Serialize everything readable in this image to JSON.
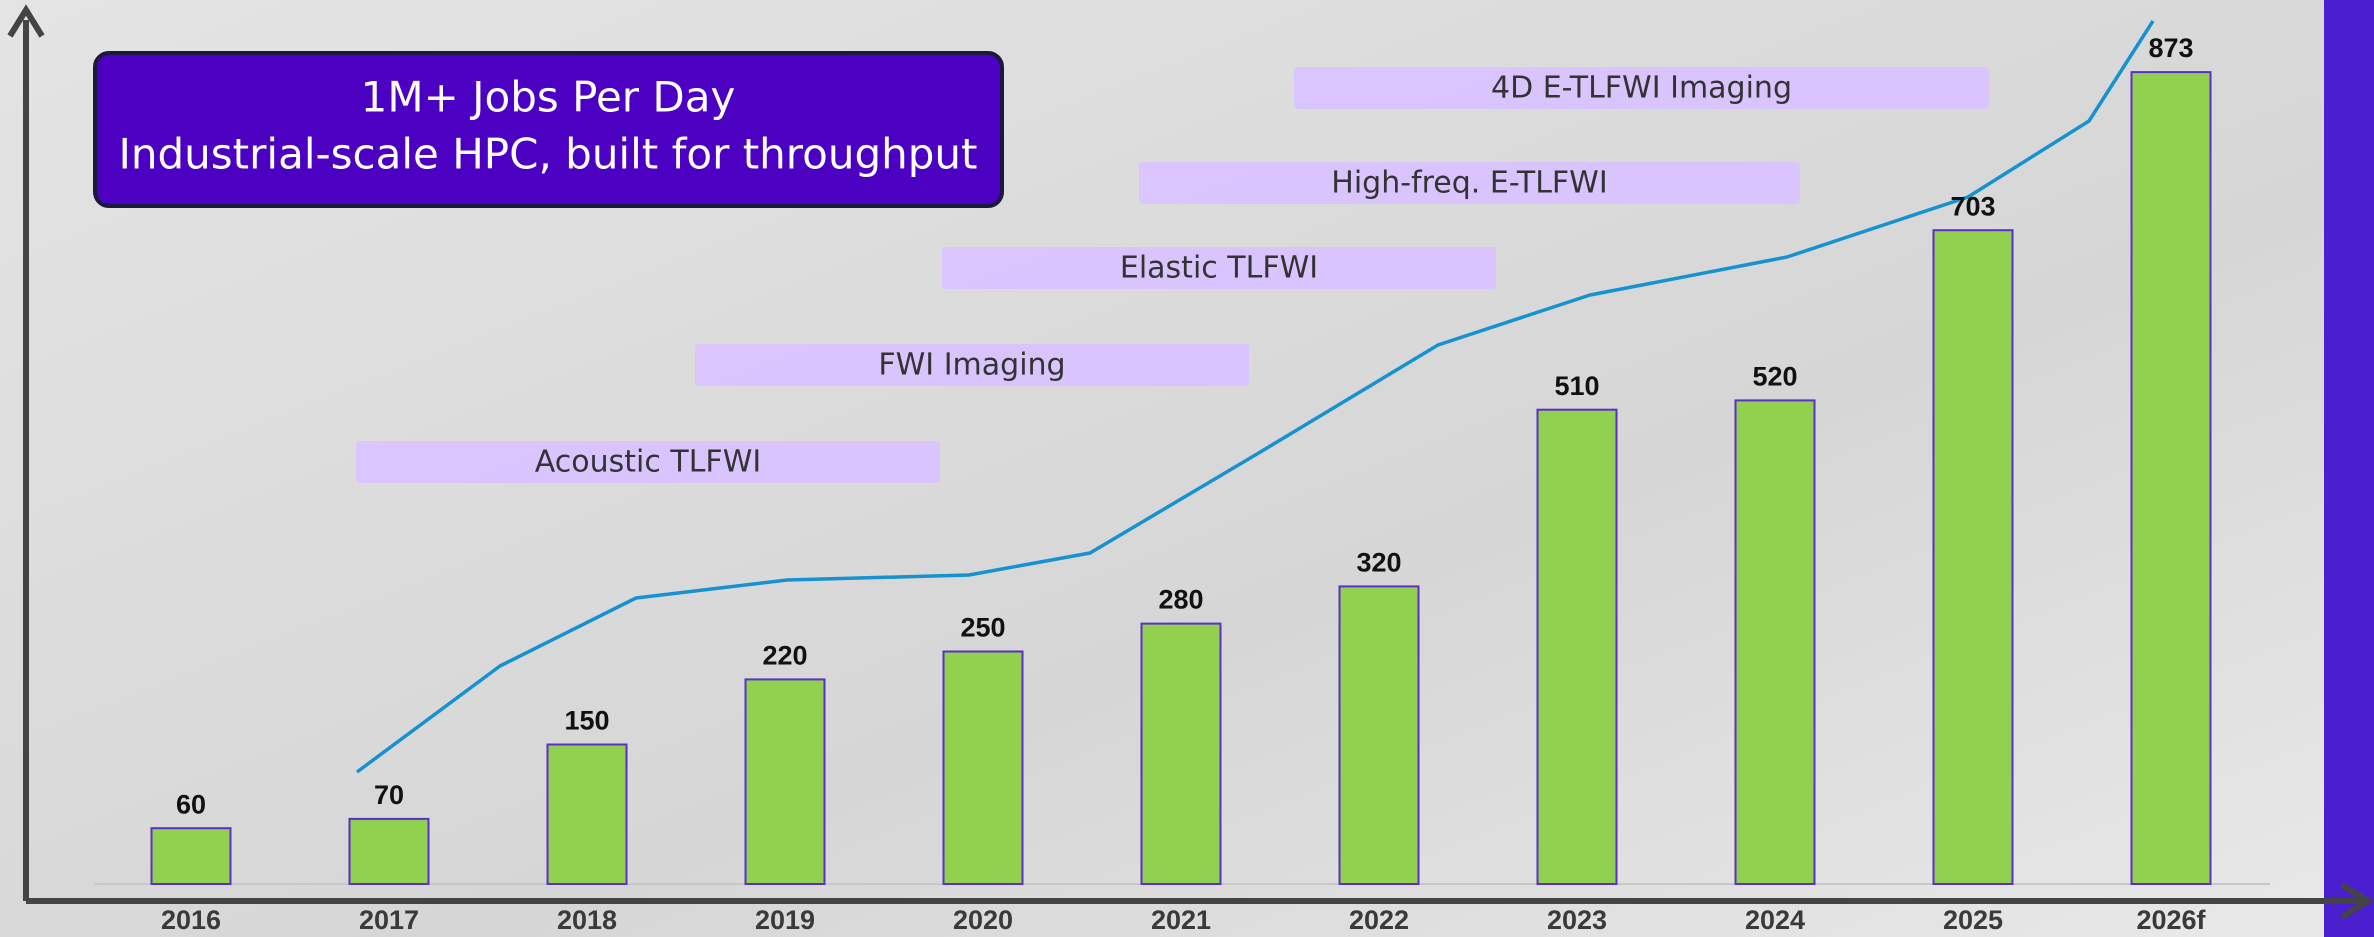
{
  "chart_data": {
    "type": "bar",
    "categories": [
      "2016",
      "2017",
      "2018",
      "2019",
      "2020",
      "2021",
      "2022",
      "2023",
      "2024",
      "2025",
      "2026f"
    ],
    "values": [
      60,
      70,
      150,
      220,
      250,
      280,
      320,
      510,
      520,
      703,
      873
    ],
    "color": "#92d050",
    "edge_color": "#5b2fc9",
    "callout": [
      "1M+ Jobs Per Day",
      "Industrial-scale HPC, built for throughput"
    ],
    "annotations": [
      "Acoustic TLFWI",
      "FWI Imaging",
      "Elastic TLFWI",
      "High-freq. E-TLFWI",
      "4D E-TLFWI Imaging"
    ]
  }
}
